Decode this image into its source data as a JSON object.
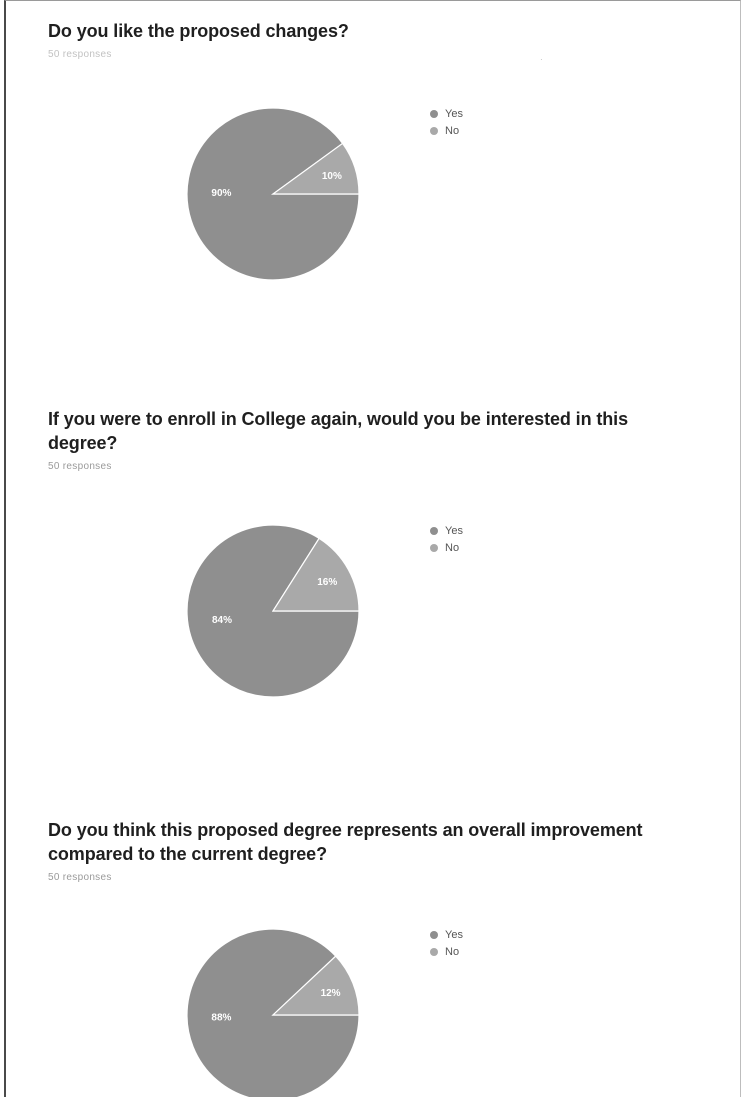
{
  "questions": [
    {
      "title": "Do you like the proposed changes?",
      "responses": "50 responses"
    },
    {
      "title": "If you were to enroll in College again, would you be interested in this degree?",
      "responses": "50 responses"
    },
    {
      "title": "Do you think this proposed degree represents an overall improvement compared to the current degree?",
      "responses": "50 responses"
    }
  ],
  "colors": {
    "yes": "#8f8f8f",
    "no": "#a9a9a9",
    "slice_border": "#ffffff"
  },
  "chart_data": [
    {
      "type": "pie",
      "labels": [
        "Yes",
        "No"
      ],
      "values": [
        90,
        10
      ],
      "data_labels": [
        "90%",
        "10%"
      ],
      "legend_placement": "right"
    },
    {
      "type": "pie",
      "labels": [
        "Yes",
        "No"
      ],
      "values": [
        84,
        16
      ],
      "data_labels": [
        "84%",
        "16%"
      ],
      "legend_placement": "right"
    },
    {
      "type": "pie",
      "labels": [
        "Yes",
        "No"
      ],
      "values": [
        88,
        12
      ],
      "data_labels": [
        "88%",
        "12%"
      ],
      "legend_placement": "right"
    }
  ]
}
